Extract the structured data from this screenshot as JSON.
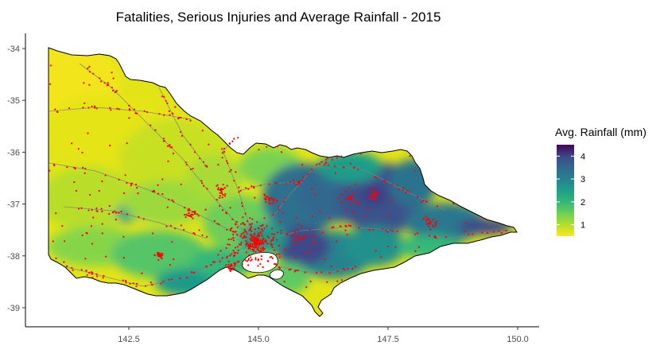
{
  "title": "Fatalities, Serious Injuries and Average Rainfall - 2015",
  "chart_data": {
    "type": "heatmap",
    "title": "Fatalities, Serious Injuries and Average Rainfall - 2015",
    "xlabel": "",
    "ylabel": "",
    "x_ticks": [
      "142.5",
      "145.0",
      "147.5",
      "150.0"
    ],
    "x_tick_values": [
      142.5,
      145.0,
      147.5,
      150.0
    ],
    "y_ticks": [
      "-34",
      "-35",
      "-36",
      "-37",
      "-38",
      "-39"
    ],
    "y_tick_values": [
      -34,
      -35,
      -36,
      -37,
      -38,
      -39
    ],
    "xlim": [
      40.84,
      150.4
    ],
    "ylim": [
      -39.45,
      -33.7
    ],
    "legend": {
      "title": "Avg. Rainfall (mm)",
      "ticks": [
        "1",
        "2",
        "3",
        "4"
      ],
      "tick_values": [
        1,
        2,
        3,
        4
      ],
      "range": [
        0.5,
        4.5
      ],
      "colors": [
        "#fde725",
        "#b5de2b",
        "#6ece58",
        "#35b779",
        "#1f9e89",
        "#26828e",
        "#31688e",
        "#3e4989",
        "#482878",
        "#440154"
      ],
      "placement": "right"
    },
    "series": [
      {
        "name": "",
        "kind": "rainfall-grid"
      },
      {
        "name": "",
        "kind": "crash-points",
        "color": "#ff0000"
      },
      {
        "name": "",
        "kind": "road-lines",
        "color": "#808080"
      }
    ],
    "grid": false
  }
}
